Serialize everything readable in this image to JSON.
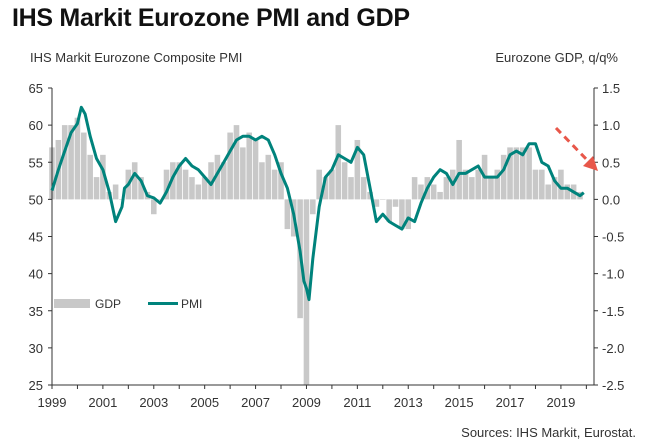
{
  "title": "IHS Markit Eurozone PMI and GDP",
  "left_caption": "IHS Markit Eurozone Composite PMI",
  "right_caption": "Eurozone GDP, q/q%",
  "source": "Sources: IHS Markit, Eurostat.",
  "colors": {
    "pmi": "#00837c",
    "gdp": "#c8c8c8",
    "arrow": "#e8574a",
    "axis": "#333333"
  },
  "chart_data": {
    "type": "bar+line",
    "ylabel_left": "IHS Markit Eurozone Composite PMI",
    "ylabel_right": "Eurozone GDP, q/q%",
    "ylim_left": [
      25,
      65
    ],
    "ylim_right": [
      -2.5,
      1.5
    ],
    "xlim": [
      1999,
      2020.3
    ],
    "grid": false,
    "legend": "bottom-left",
    "left_ticks": [
      "65",
      "60",
      "55",
      "50",
      "45",
      "40",
      "35",
      "30",
      "25"
    ],
    "right_ticks": [
      "1.5",
      "1.0",
      "0.5",
      "0.0",
      "-0.5",
      "-1.0",
      "-1.5",
      "-2.0",
      "-2.5"
    ],
    "x_ticks": [
      "1999",
      "2001",
      "2003",
      "2005",
      "2007",
      "2009",
      "2011",
      "2013",
      "2015",
      "2017",
      "2019"
    ],
    "legend_labels": [
      "GDP",
      "PMI"
    ],
    "series": [
      {
        "name": "GDP",
        "kind": "bar",
        "axis": "right",
        "x": [
          1999.0,
          1999.25,
          1999.5,
          1999.75,
          2000.0,
          2000.25,
          2000.5,
          2000.75,
          2001.0,
          2001.25,
          2001.5,
          2001.75,
          2002.0,
          2002.25,
          2002.5,
          2002.75,
          2003.0,
          2003.25,
          2003.5,
          2003.75,
          2004.0,
          2004.25,
          2004.5,
          2004.75,
          2005.0,
          2005.25,
          2005.5,
          2005.75,
          2006.0,
          2006.25,
          2006.5,
          2006.75,
          2007.0,
          2007.25,
          2007.5,
          2007.75,
          2008.0,
          2008.25,
          2008.5,
          2008.75,
          2009.0,
          2009.25,
          2009.5,
          2009.75,
          2010.0,
          2010.25,
          2010.5,
          2010.75,
          2011.0,
          2011.25,
          2011.5,
          2011.75,
          2012.0,
          2012.25,
          2012.5,
          2012.75,
          2013.0,
          2013.25,
          2013.5,
          2013.75,
          2014.0,
          2014.25,
          2014.5,
          2014.75,
          2015.0,
          2015.25,
          2015.5,
          2015.75,
          2016.0,
          2016.25,
          2016.5,
          2016.75,
          2017.0,
          2017.25,
          2017.5,
          2017.75,
          2018.0,
          2018.25,
          2018.5,
          2018.75,
          2019.0,
          2019.25,
          2019.5,
          2019.75
        ],
        "values": [
          0.7,
          0.8,
          1.0,
          1.0,
          1.1,
          0.9,
          0.6,
          0.3,
          0.6,
          0.1,
          0.2,
          0.0,
          0.4,
          0.5,
          0.3,
          0.1,
          -0.2,
          0.0,
          0.4,
          0.5,
          0.5,
          0.4,
          0.3,
          0.2,
          0.3,
          0.5,
          0.6,
          0.5,
          0.9,
          1.0,
          0.7,
          0.9,
          0.8,
          0.5,
          0.6,
          0.4,
          0.5,
          -0.4,
          -0.5,
          -1.6,
          -2.5,
          -0.2,
          0.4,
          0.3,
          0.4,
          1.0,
          0.5,
          0.3,
          0.8,
          0.3,
          0.1,
          -0.1,
          0.0,
          -0.3,
          -0.1,
          -0.4,
          -0.4,
          0.3,
          0.2,
          0.3,
          0.2,
          0.1,
          0.3,
          0.4,
          0.8,
          0.4,
          0.3,
          0.4,
          0.6,
          0.3,
          0.4,
          0.6,
          0.7,
          0.7,
          0.7,
          0.7,
          0.4,
          0.4,
          0.2,
          0.3,
          0.4,
          0.2,
          0.2,
          0.1
        ]
      },
      {
        "name": "PMI",
        "kind": "line",
        "axis": "left",
        "x": [
          1999.0,
          1999.25,
          1999.5,
          1999.75,
          2000.0,
          2000.15,
          2000.3,
          2000.5,
          2000.75,
          2001.0,
          2001.25,
          2001.5,
          2001.75,
          2001.85,
          2002.0,
          2002.25,
          2002.5,
          2002.75,
          2003.0,
          2003.25,
          2003.5,
          2003.75,
          2004.0,
          2004.25,
          2004.5,
          2004.75,
          2005.0,
          2005.25,
          2005.5,
          2005.75,
          2006.0,
          2006.25,
          2006.5,
          2006.75,
          2007.0,
          2007.25,
          2007.5,
          2007.75,
          2008.0,
          2008.25,
          2008.5,
          2008.75,
          2008.9,
          2009.0,
          2009.1,
          2009.25,
          2009.5,
          2009.75,
          2010.0,
          2010.25,
          2010.5,
          2010.75,
          2011.0,
          2011.25,
          2011.5,
          2011.75,
          2012.0,
          2012.25,
          2012.5,
          2012.75,
          2013.0,
          2013.25,
          2013.5,
          2013.75,
          2014.0,
          2014.25,
          2014.5,
          2014.75,
          2015.0,
          2015.25,
          2015.5,
          2015.75,
          2016.0,
          2016.25,
          2016.5,
          2016.75,
          2017.0,
          2017.25,
          2017.5,
          2017.75,
          2018.0,
          2018.25,
          2018.5,
          2018.75,
          2019.0,
          2019.25,
          2019.5,
          2019.75,
          2019.9
        ],
        "values": [
          51.2,
          54.0,
          56.5,
          59.0,
          60.2,
          62.4,
          61.5,
          58.5,
          55.5,
          54.0,
          51.0,
          47.0,
          49.0,
          51.5,
          52.0,
          53.5,
          52.5,
          50.5,
          50.2,
          49.5,
          51.0,
          53.0,
          54.5,
          55.5,
          54.5,
          54.0,
          53.0,
          52.0,
          53.5,
          55.0,
          56.5,
          58.0,
          58.5,
          58.5,
          58.0,
          58.5,
          58.0,
          56.0,
          53.5,
          51.5,
          48.0,
          43.0,
          39.0,
          38.0,
          36.5,
          42.0,
          49.0,
          53.0,
          54.0,
          56.0,
          55.5,
          55.0,
          57.0,
          56.0,
          51.5,
          47.0,
          48.0,
          47.0,
          46.5,
          46.0,
          47.5,
          47.0,
          49.5,
          51.5,
          53.0,
          54.0,
          53.5,
          52.0,
          53.5,
          53.5,
          54.0,
          54.5,
          53.0,
          53.0,
          53.0,
          54.0,
          56.0,
          56.5,
          56.0,
          57.5,
          57.5,
          55.0,
          54.5,
          52.5,
          51.5,
          51.5,
          51.0,
          50.5,
          50.9
        ]
      }
    ]
  }
}
